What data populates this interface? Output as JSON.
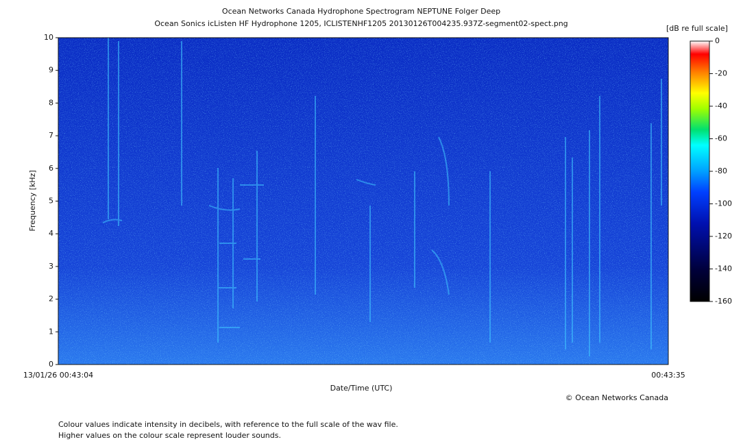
{
  "chart_data": {
    "type": "spectrogram",
    "title": "Ocean Networks Canada Hydrophone Spectrogram NEPTUNE Folger Deep",
    "subtitle": "Ocean Sonics icListen HF Hydrophone 1205, ICLISTENHF1205 20130126T004235.937Z-segment02-spect.png",
    "x_label": "Date/Time (UTC)",
    "y_label": "Frequency [kHz]",
    "xtick_labels": [
      "13/01/26 00:43:04",
      "00:43:35"
    ],
    "ylim": [
      0,
      10
    ],
    "yticks": [
      0,
      1,
      2,
      3,
      4,
      5,
      6,
      7,
      8,
      9,
      10
    ],
    "colorbar_label": "[dB re full scale]",
    "clim": [
      -160,
      0
    ],
    "cticks": [
      0,
      -20,
      -40,
      -60,
      -80,
      -100,
      -120,
      -140,
      -160
    ],
    "credit": "© Ocean Networks Canada",
    "notes": [
      "Colour values indicate intensity in decibels, with reference to the full scale of the wav file.",
      "Higher values on the colour scale represent louder sounds."
    ]
  }
}
